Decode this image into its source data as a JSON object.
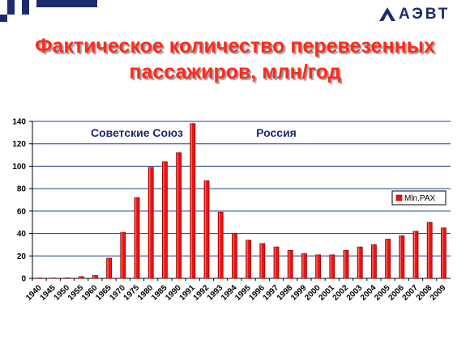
{
  "slide": {
    "title_line1": "Фактическое количество перевезенных",
    "title_line2": "пассажиров, млн/год",
    "logo_text": "АЭВТ"
  },
  "colors": {
    "title": "#ff2a1a",
    "bar": "#ee1111",
    "bar_dark": "#8a0000",
    "grid": "#1c3d8c",
    "label": "#1c2a6e",
    "logo": "#1c2a6e"
  },
  "chart_data": {
    "type": "bar",
    "title": "",
    "xlabel": "",
    "ylabel": "",
    "ylim": [
      0,
      140
    ],
    "yticks": [
      0,
      20,
      40,
      60,
      80,
      100,
      120,
      140
    ],
    "grid": true,
    "legend_position": "right",
    "annotations": [
      {
        "text": "Советские Союз",
        "at_category": "1975"
      },
      {
        "text": "Россия",
        "at_category": "1997"
      }
    ],
    "categories": [
      "1940",
      "1945",
      "1950",
      "1955",
      "1960",
      "1965",
      "1970",
      "1975",
      "1980",
      "1985",
      "1990",
      "1991",
      "1992",
      "1993",
      "1994",
      "1995",
      "1996",
      "1997",
      "1998",
      "1999",
      "2000",
      "2001",
      "2002",
      "2003",
      "2004",
      "2005",
      "2006",
      "2007",
      "2008",
      "2009"
    ],
    "series": [
      {
        "name": "Mln.PAX",
        "values": [
          0.2,
          0.3,
          0.5,
          1.5,
          2.5,
          18,
          41,
          72,
          99,
          104,
          112,
          138,
          87,
          59,
          40,
          34,
          31,
          28,
          25,
          22,
          21,
          21,
          25,
          28,
          30,
          35,
          38,
          42,
          50,
          45
        ]
      }
    ]
  }
}
